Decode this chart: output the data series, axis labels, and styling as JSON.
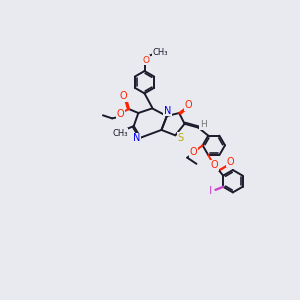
{
  "bg_color": "#e8eaf0",
  "bond_color": "#1a1a2a",
  "atom_colors": {
    "O": "#ff2200",
    "N": "#0000ee",
    "S": "#bbaa00",
    "I": "#cc44cc",
    "H": "#777777",
    "C": "#1a1a2a"
  },
  "lw": 1.4,
  "fs": 6.5
}
